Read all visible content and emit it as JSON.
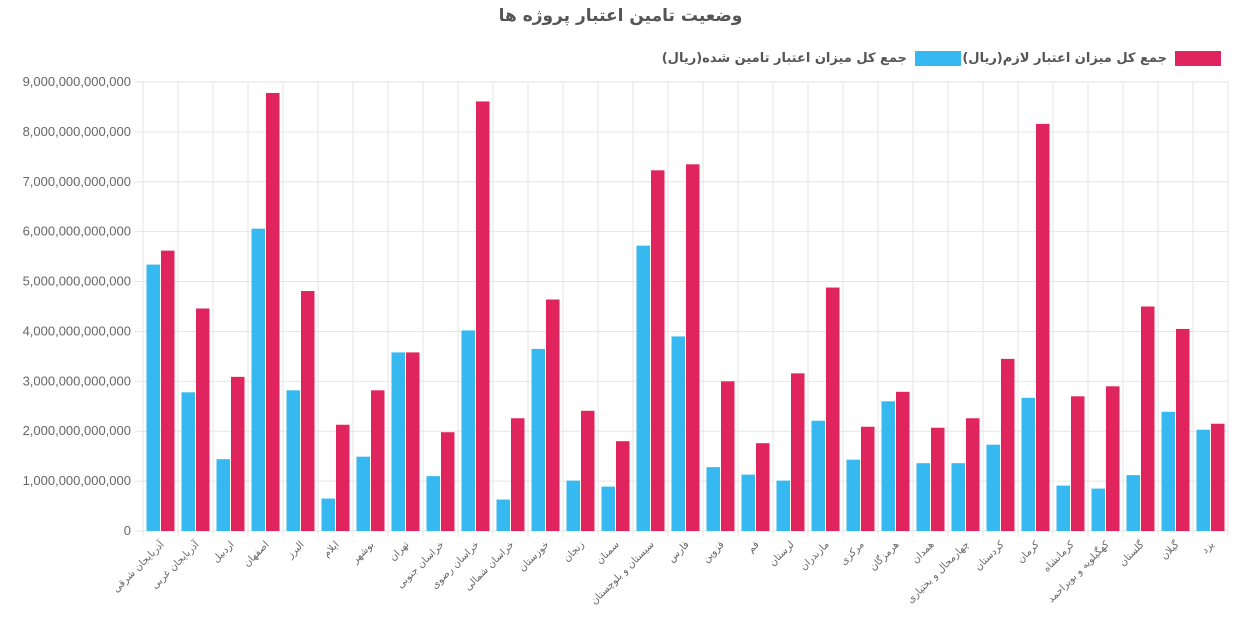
{
  "chart_data": {
    "type": "bar",
    "title": "وضعیت تامین اعتبار پروژه ها",
    "xlabel": "",
    "ylabel": "",
    "ylim": [
      0,
      9000000000000
    ],
    "ytick_labels": [
      "0",
      "1,000,000,000,000",
      "2,000,000,000,000",
      "3,000,000,000,000",
      "4,000,000,000,000",
      "5,000,000,000,000",
      "6,000,000,000,000",
      "7,000,000,000,000",
      "8,000,000,000,000",
      "9,000,000,000,000"
    ],
    "grid": true,
    "legend_position": "top-right",
    "categories": [
      "آذربایجان شرقی",
      "آذربایجان غربی",
      "اردبیل",
      "اصفهان",
      "البرز",
      "ایلام",
      "بوشهر",
      "تهران",
      "خراسان جنوبی",
      "خراسان رضوی",
      "خراسان شمالی",
      "خوزستان",
      "زنجان",
      "سمنان",
      "سیستان و بلوچستان",
      "فارس",
      "قزوین",
      "قم",
      "لرستان",
      "مازندران",
      "مرکزی",
      "هرمزگان",
      "همدان",
      "چهارمحال و بختیاری",
      "کردستان",
      "کرمان",
      "کرمانشاه",
      "کهگیلویه و بویراحمد",
      "گلستان",
      "گیلان",
      "یزد"
    ],
    "series": [
      {
        "name": "جمع کل میزان اعتبار لازم(ریال)",
        "color": "#e0245e",
        "values": [
          5620000000000,
          4460000000000,
          3090000000000,
          8780000000000,
          4810000000000,
          2130000000000,
          2820000000000,
          3580000000000,
          1980000000000,
          8610000000000,
          2260000000000,
          4640000000000,
          2410000000000,
          1800000000000,
          7230000000000,
          7350000000000,
          3000000000000,
          1760000000000,
          3160000000000,
          4880000000000,
          2090000000000,
          2790000000000,
          2070000000000,
          2260000000000,
          3450000000000,
          8160000000000,
          2700000000000,
          2900000000000,
          4500000000000,
          4050000000000,
          2150000000000
        ]
      },
      {
        "name": "جمع کل میزان اعتبار تامین شده(ریال)",
        "color": "#36b9f0",
        "values": [
          5340000000000,
          2780000000000,
          1440000000000,
          6060000000000,
          2820000000000,
          650000000000,
          1490000000000,
          3580000000000,
          1100000000000,
          4020000000000,
          630000000000,
          3650000000000,
          1010000000000,
          890000000000,
          5720000000000,
          3900000000000,
          1280000000000,
          1130000000000,
          1010000000000,
          2210000000000,
          1430000000000,
          2600000000000,
          1360000000000,
          1360000000000,
          1730000000000,
          2670000000000,
          910000000000,
          850000000000,
          1120000000000,
          2390000000000,
          2030000000000
        ]
      }
    ]
  }
}
